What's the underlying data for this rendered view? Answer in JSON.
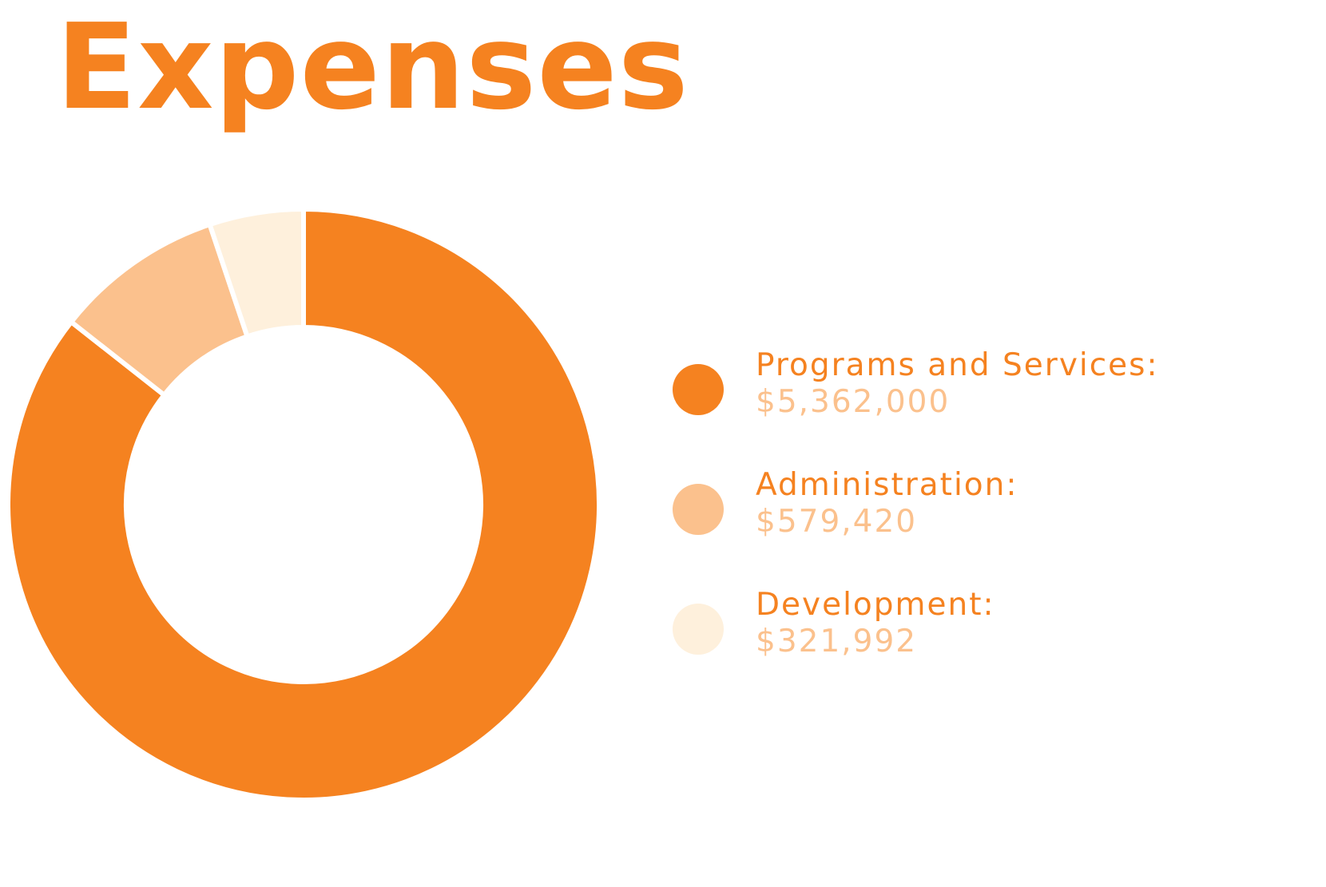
{
  "title": "Expenses",
  "colors": {
    "accent": "#f58220",
    "programs": "#f58220",
    "administration": "#fbc18d",
    "development": "#fef0dc",
    "label_text": "#f58220",
    "value_text": "#fbc18d"
  },
  "chart_data": {
    "type": "pie",
    "variant": "donut",
    "title": "Expenses",
    "legend_position": "right",
    "slices": [
      {
        "label": "Programs and Services:",
        "value": 5362000,
        "display": "$5,362,000",
        "color": "#f58220"
      },
      {
        "label": "Administration:",
        "value": 579420,
        "display": "$579,420",
        "color": "#fbc18d"
      },
      {
        "label": "Development:",
        "value": 321992,
        "display": "$321,992",
        "color": "#fef0dc"
      }
    ]
  }
}
